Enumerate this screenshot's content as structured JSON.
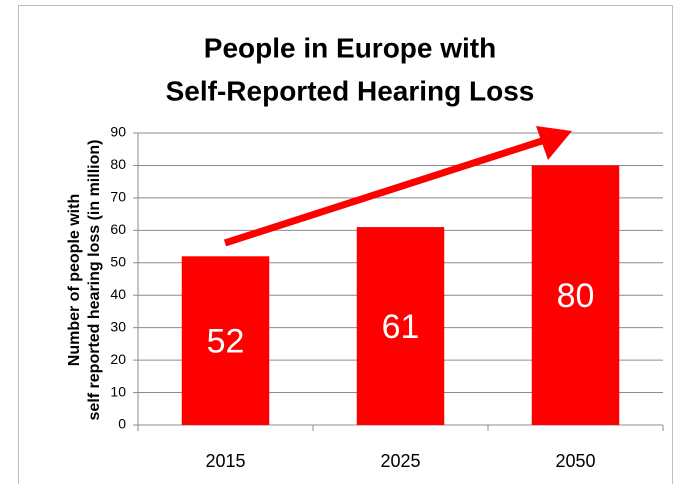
{
  "chart_data": {
    "type": "bar",
    "title": [
      "People in Europe with",
      "Self-Reported Hearing Loss"
    ],
    "y_label": [
      "Number of people with",
      "self reported hearing loss (in million)"
    ],
    "categories": [
      "2015",
      "2025",
      "2050"
    ],
    "values": [
      52,
      61,
      80
    ],
    "color": "#ff0000",
    "ylim": [
      0,
      90
    ],
    "yticks": [
      0,
      10,
      20,
      30,
      40,
      50,
      60,
      70,
      80,
      90
    ],
    "grid": true
  }
}
